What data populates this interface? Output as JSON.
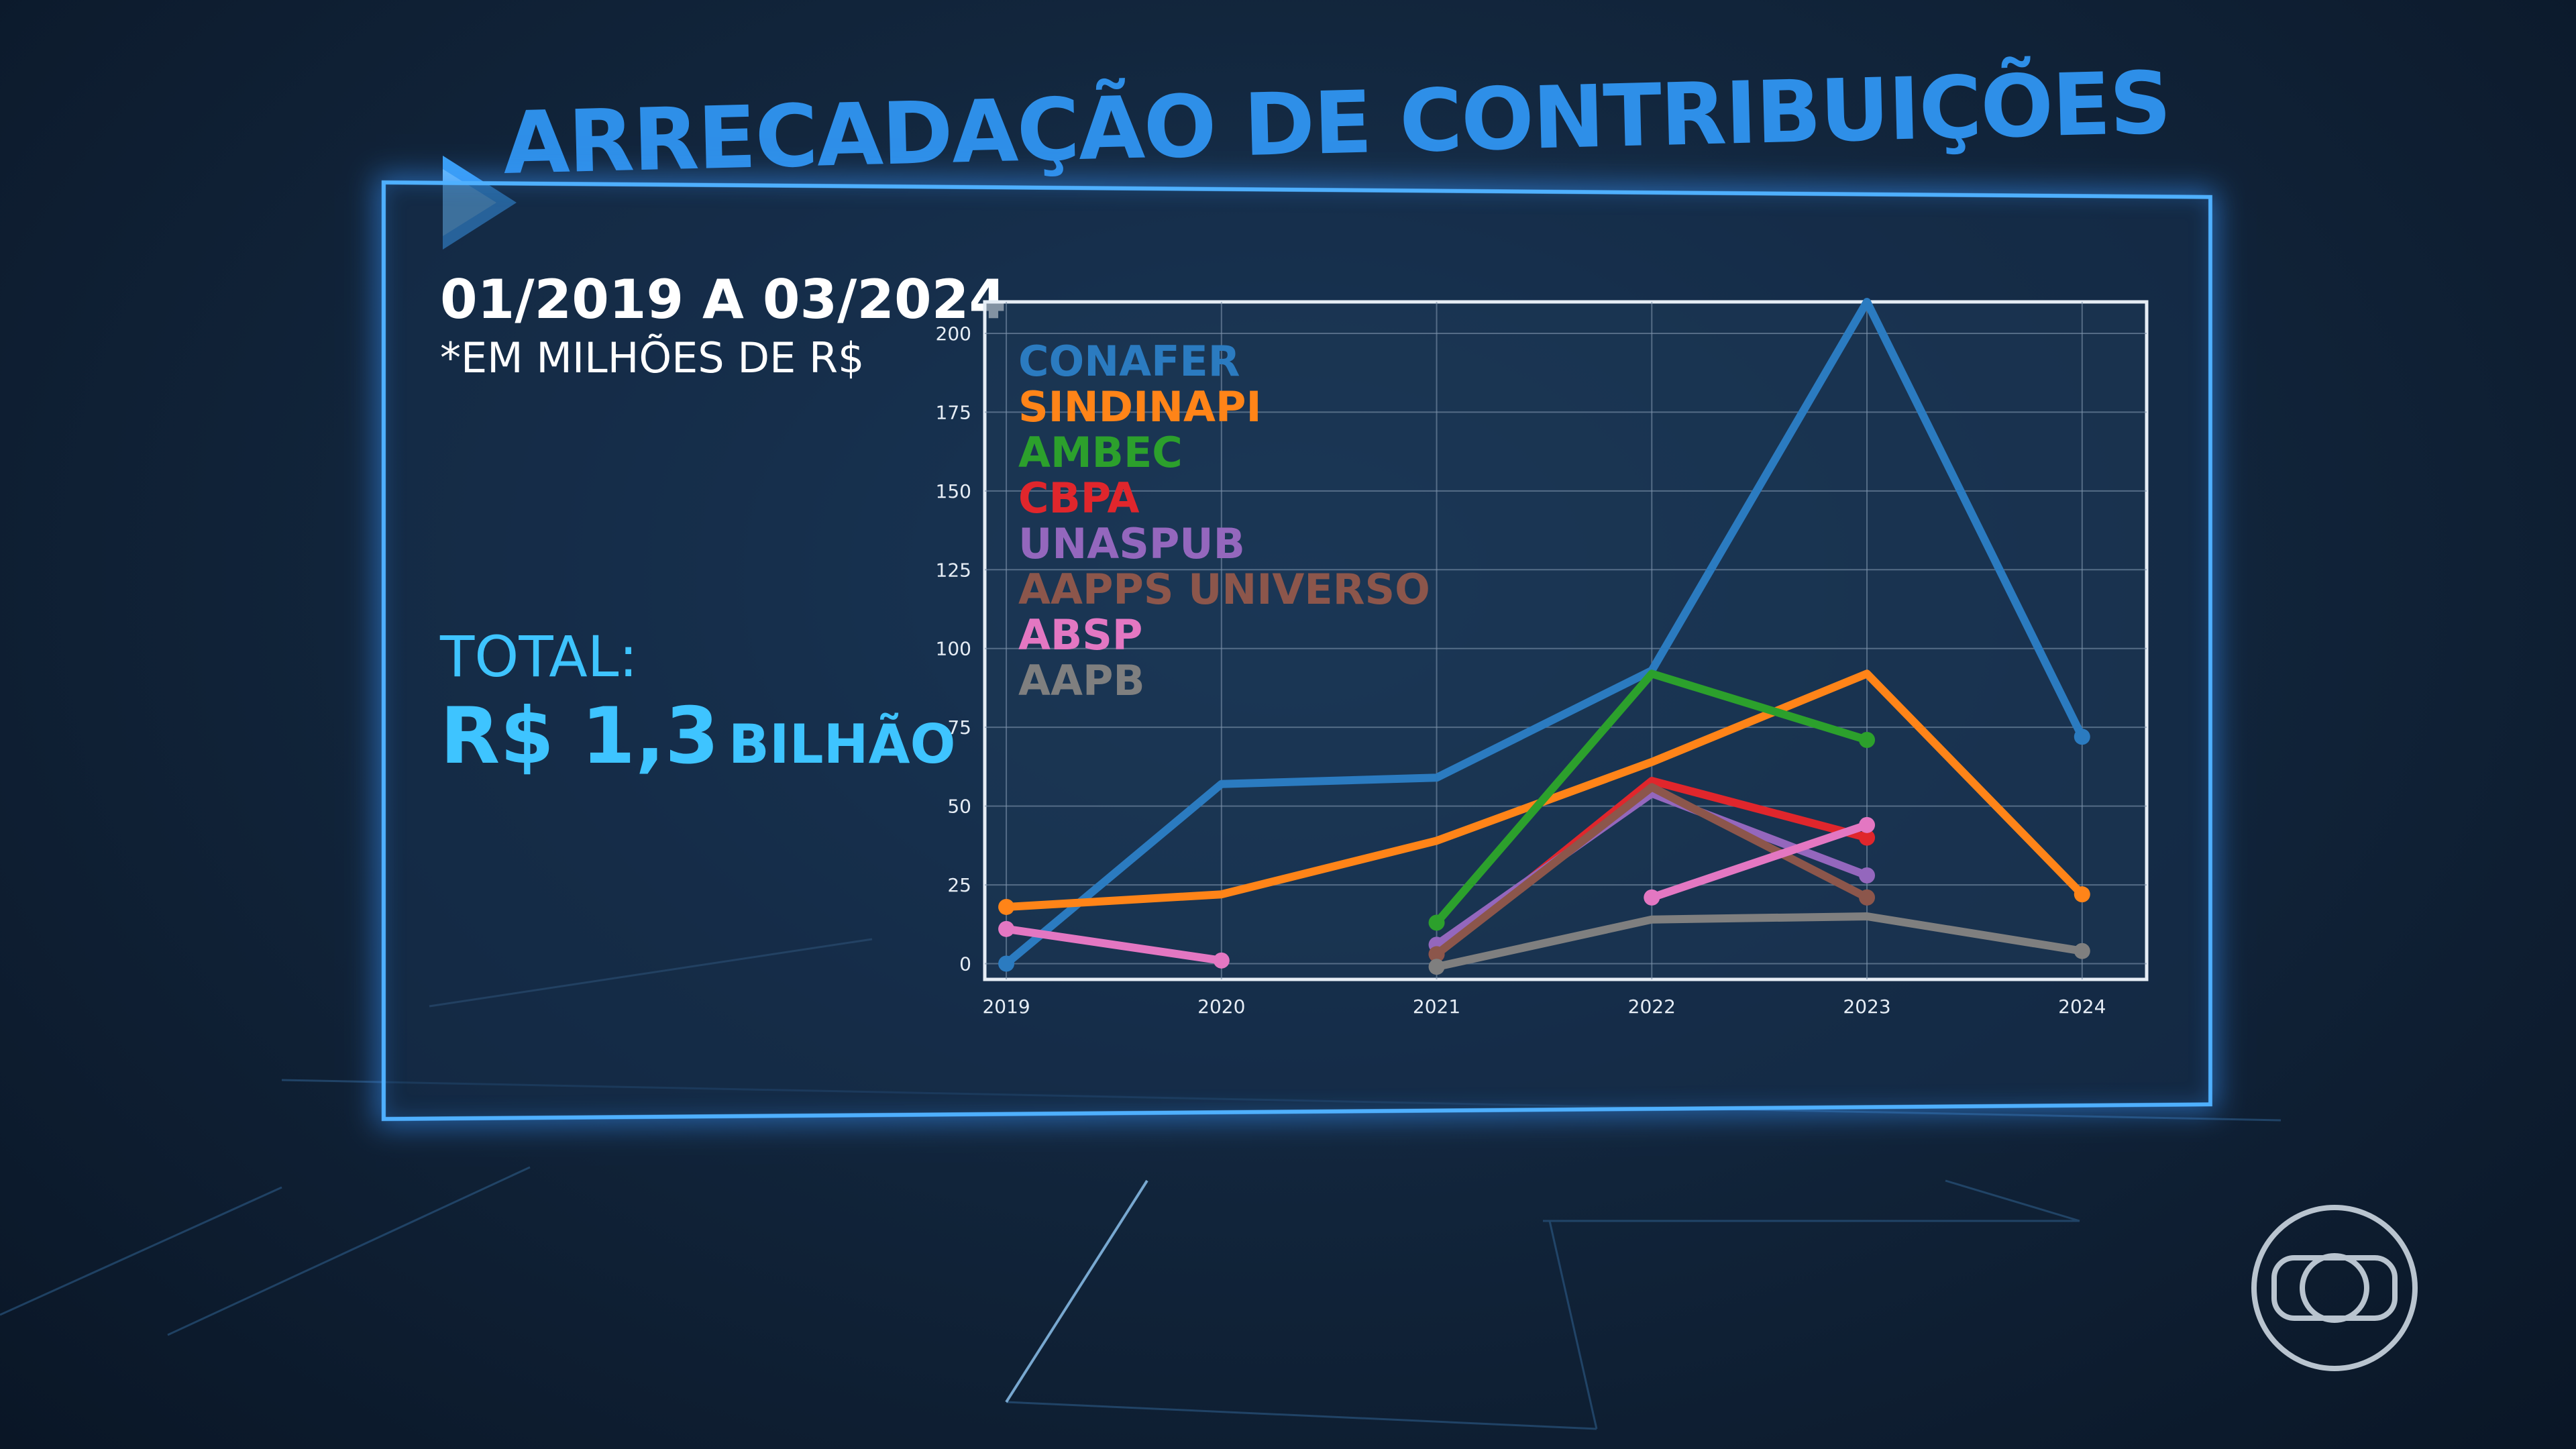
{
  "title": "ARRECADAÇÃO DE CONTRIBUIÇÕES",
  "period": "01/2019 A 03/2024",
  "units_note": "*EM MILHÕES DE R$",
  "total": {
    "label": "TOTAL:",
    "amount": "R$ 1,3",
    "unit": "BILHÃO"
  },
  "colors": {
    "accent": "#2e8fe8",
    "highlight": "#3ec4ff",
    "frame": "#4fb0ff"
  },
  "logo_icon": "globo-logo-icon",
  "chart_data": {
    "type": "line",
    "x": [
      2019,
      2020,
      2021,
      2022,
      2023,
      2024
    ],
    "xticks": [
      "2019",
      "2020",
      "2021",
      "2022",
      "2023",
      "2024"
    ],
    "yticks": [
      0,
      25,
      50,
      75,
      100,
      125,
      150,
      175,
      200
    ],
    "ylim": [
      -5,
      210
    ],
    "xlim": [
      2018.9,
      2024.3
    ],
    "grid": true,
    "legend_position": "top-left",
    "series": [
      {
        "name": "CONAFER",
        "color": "#2b7bc0",
        "x": [
          2019,
          2020,
          2021,
          2022,
          2023,
          2024
        ],
        "values": [
          0,
          57,
          59,
          93,
          210,
          72
        ]
      },
      {
        "name": "SINDINAPI",
        "color": "#ff8418",
        "x": [
          2019,
          2020,
          2021,
          2022,
          2023,
          2024
        ],
        "values": [
          18,
          22,
          39,
          64,
          92,
          22
        ]
      },
      {
        "name": "AMBEC",
        "color": "#2ca02c",
        "x": [
          2021,
          2022,
          2023
        ],
        "values": [
          13,
          92,
          71
        ]
      },
      {
        "name": "CBPA",
        "color": "#e0262c",
        "x": [
          2021,
          2022,
          2023
        ],
        "values": [
          3,
          58,
          40
        ]
      },
      {
        "name": "UNASPUB",
        "color": "#9467bd",
        "x": [
          2021,
          2022,
          2023
        ],
        "values": [
          6,
          54,
          28
        ]
      },
      {
        "name": "AAPPS UNIVERSO",
        "color": "#8c564b",
        "x": [
          2021,
          2022,
          2023
        ],
        "values": [
          3,
          56,
          21
        ]
      },
      {
        "name": "ABSP",
        "color": "#e377c2",
        "x": [
          2019,
          2020,
          2022,
          2023
        ],
        "values": [
          11,
          1,
          21,
          44
        ],
        "segments": [
          [
            0,
            1
          ],
          [
            2,
            3
          ]
        ]
      },
      {
        "name": "AAPB",
        "color": "#7f7f7f",
        "x": [
          2021,
          2022,
          2023,
          2024
        ],
        "values": [
          -1,
          14,
          15,
          4
        ]
      }
    ]
  }
}
